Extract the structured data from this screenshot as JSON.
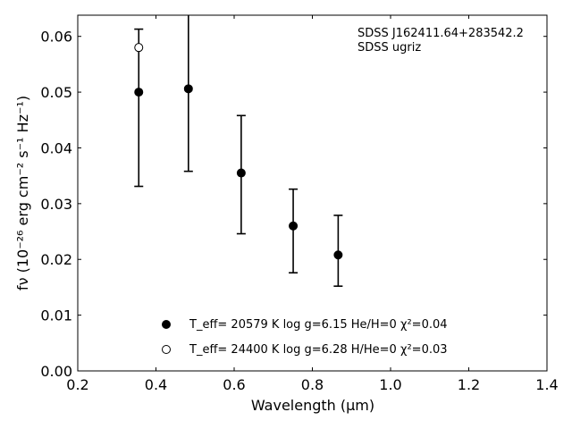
{
  "chart_data": {
    "type": "scatter",
    "xlabel": "Wavelength (μm)",
    "ylabel": "fν (10⁻²⁶ erg cm⁻² s⁻¹ Hz⁻¹)",
    "xlim": [
      0.2,
      1.4
    ],
    "ylim": [
      0.0,
      0.0638
    ],
    "x_ticks": [
      "0.2",
      "0.4",
      "0.6",
      "0.8",
      "1.0",
      "1.2",
      "1.4"
    ],
    "y_ticks": [
      "0.00",
      "0.01",
      "0.02",
      "0.03",
      "0.04",
      "0.05",
      "0.06"
    ],
    "grid": false,
    "legend_position": "bottom-center",
    "annotations": [
      "SDSS J162411.64+283542.2",
      "SDSS ugriz"
    ],
    "series": [
      {
        "name": "T_eff= 20579 K  log g=6.15  He/H=0  χ²=0.04",
        "marker": "filled-circle",
        "color": "#000000",
        "points": [
          {
            "x": 0.356,
            "y": 0.05
          },
          {
            "x": 0.483,
            "y": 0.0506
          },
          {
            "x": 0.618,
            "y": 0.0355
          },
          {
            "x": 0.751,
            "y": 0.026
          },
          {
            "x": 0.866,
            "y": 0.0208
          }
        ]
      },
      {
        "name": "T_eff= 24400 K  log g=6.28  H/He=0  χ²=0.03",
        "marker": "open-circle",
        "color": "#000000",
        "points": [
          {
            "x": 0.356,
            "y": 0.058
          }
        ]
      }
    ],
    "error_bars": [
      {
        "x": 0.356,
        "low": 0.0331,
        "high": 0.0613
      },
      {
        "x": 0.483,
        "low": 0.0358,
        "high": 0.066
      },
      {
        "x": 0.618,
        "low": 0.0246,
        "high": 0.0458
      },
      {
        "x": 0.751,
        "low": 0.0176,
        "high": 0.0326
      },
      {
        "x": 0.866,
        "low": 0.0152,
        "high": 0.0279
      }
    ]
  }
}
